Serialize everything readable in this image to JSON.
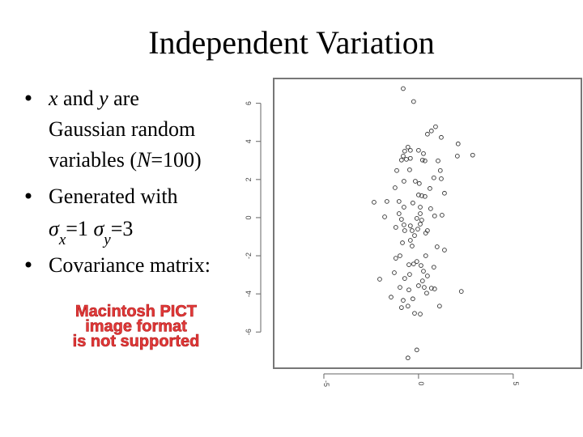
{
  "title": "Independent Variation",
  "bullets": [
    [
      [
        {
          "text": "x",
          "italic": true
        },
        {
          "text": " and "
        },
        {
          "text": "y",
          "italic": true
        },
        {
          "text": " are"
        }
      ],
      [
        {
          "text": "Gaussian random"
        }
      ],
      [
        {
          "text": "variables  ("
        },
        {
          "text": "N",
          "italic": true
        },
        {
          "text": "=100)"
        }
      ]
    ],
    [
      [
        {
          "text": "Generated with"
        }
      ],
      [
        {
          "text": "σ",
          "italic": true
        },
        {
          "text": "x",
          "italic": true,
          "sub": true
        },
        {
          "text": "=1    "
        },
        {
          "text": "σ",
          "italic": true
        },
        {
          "text": "y",
          "italic": true,
          "sub": true
        },
        {
          "text": "=3"
        }
      ]
    ],
    [
      [
        {
          "text": "Covariance matrix:"
        }
      ]
    ]
  ],
  "pict_notice": [
    "Macintosh PICT",
    "image format",
    "is not supported"
  ],
  "chart_data": {
    "type": "scatter",
    "color": "#333333",
    "x": [
      -0.81,
      -0.26,
      0.9,
      0.68,
      0.47,
      1.2,
      -0.56,
      -0.43,
      -0.73,
      0,
      -0.81,
      0.26,
      2.05,
      2.86,
      -0.64,
      -0.43,
      -0.9,
      0.21,
      0.34,
      1.03,
      2.09,
      1.15,
      -0.47,
      -1.15,
      0.81,
      -0.17,
      -0.77,
      1.2,
      0.04,
      -1.24,
      0.6,
      1.37,
      0.17,
      0.34,
      0,
      -1.67,
      -1.03,
      -2.35,
      -0.3,
      -0.77,
      0.09,
      0.64,
      -1.03,
      0.09,
      1.24,
      0.85,
      -1.79,
      -0.9,
      -0.09,
      0.17,
      -0.77,
      0.09,
      -0.43,
      -1.2,
      -0.04,
      0.47,
      -0.34,
      -0.73,
      0.38,
      -0.21,
      -0.43,
      -0.85,
      -0.34,
      0.98,
      1.37,
      -0.98,
      -1.2,
      0.38,
      -0.09,
      -0.26,
      0.13,
      -0.51,
      0.81,
      0.26,
      -1.28,
      -0.47,
      0.47,
      -0.73,
      -2.05,
      0.21,
      0,
      -0.98,
      0.68,
      0.3,
      0.85,
      2.26,
      -0.51,
      0.43,
      -1.45,
      -0.3,
      -0.81,
      -0.56,
      1.11,
      -0.9,
      -0.21,
      0.09,
      -0.09,
      -0.56
    ],
    "y": [
      6.77,
      6.09,
      4.77,
      4.55,
      4.38,
      4.21,
      3.7,
      3.53,
      3.49,
      3.53,
      3.23,
      3.36,
      3.23,
      3.28,
      3.06,
      3.11,
      3.02,
      3.02,
      2.98,
      2.98,
      3.87,
      2.47,
      2.51,
      2.47,
      2.09,
      1.91,
      1.91,
      2.04,
      1.79,
      1.57,
      1.53,
      1.28,
      1.15,
      1.11,
      1.19,
      0.85,
      0.85,
      0.81,
      0.77,
      0.55,
      0.55,
      0.47,
      0.21,
      0.21,
      0.13,
      0.09,
      0.04,
      -0.09,
      -0.04,
      -0.13,
      -0.38,
      -0.34,
      -0.43,
      -0.51,
      -0.6,
      -0.68,
      -0.68,
      -0.68,
      -0.81,
      -0.94,
      -1.19,
      -1.32,
      -1.49,
      -1.53,
      -1.7,
      -2.0,
      -2.13,
      -2.0,
      -2.3,
      -2.43,
      -2.51,
      -2.47,
      -2.6,
      -2.81,
      -2.89,
      -2.98,
      -3.06,
      -3.19,
      -3.23,
      -3.32,
      -3.57,
      -3.66,
      -3.7,
      -3.66,
      -3.74,
      -3.87,
      -3.79,
      -3.96,
      -4.17,
      -4.26,
      -4.34,
      -4.64,
      -4.64,
      -4.72,
      -5.02,
      -5.06,
      -6.94,
      -7.36
    ],
    "xlim": [
      -7.65,
      8.6
    ],
    "ylim": [
      -7.9,
      7.3
    ],
    "xticks": [
      -5,
      0,
      5
    ],
    "yticks": [
      -6,
      -4,
      -2,
      0,
      2,
      4,
      6
    ]
  }
}
